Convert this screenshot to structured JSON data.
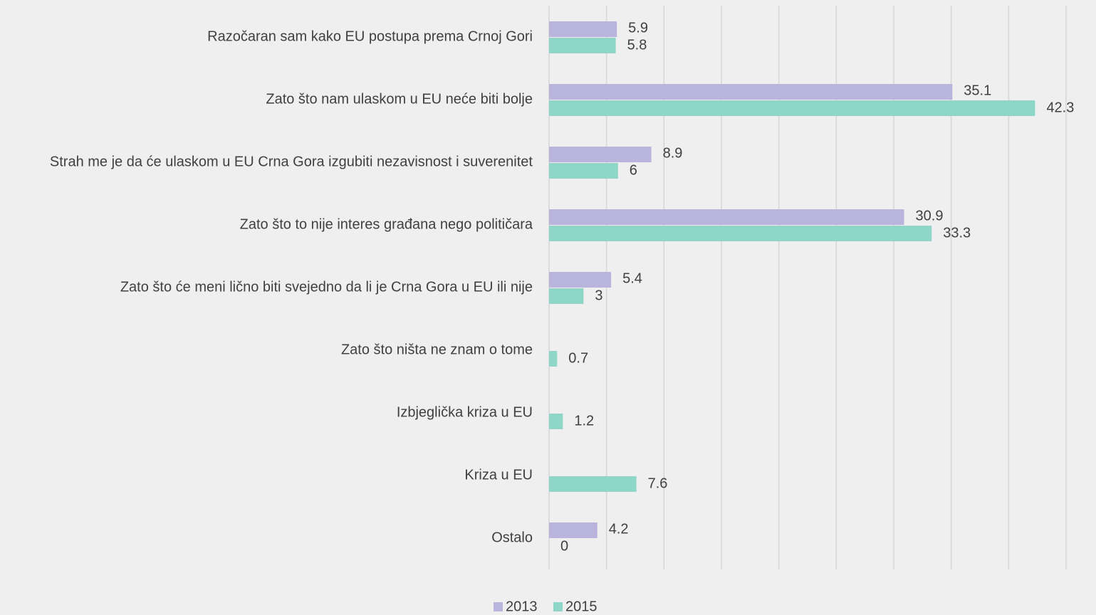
{
  "chart_data": {
    "type": "barh",
    "categories": [
      "Razočaran sam kako EU postupa prema Crnoj Gori",
      "Zato što nam ulaskom u EU neće biti bolje",
      "Strah me je da će ulaskom u EU Crna Gora izgubiti nezavisnost i suverenitet",
      "Zato što to nije interes građana nego političara",
      "Zato što će meni lično biti svejedno da li je Crna Gora u EU ili nije",
      "Zato što ništa ne znam o tome",
      "Izbjeglička kriza u EU",
      "Kriza u EU",
      "Ostalo"
    ],
    "series": [
      {
        "name": "2013",
        "color": "#b9b4dc",
        "values": [
          5.9,
          35.1,
          8.9,
          30.9,
          5.4,
          null,
          null,
          null,
          4.2
        ]
      },
      {
        "name": "2015",
        "color": "#8ed6c8",
        "values": [
          5.8,
          42.3,
          6,
          33.3,
          3,
          0.7,
          1.2,
          7.6,
          0
        ]
      }
    ],
    "xlim": [
      0,
      45
    ],
    "xticks": [
      0,
      5,
      10,
      15,
      20,
      25,
      30,
      35,
      40,
      45
    ],
    "grid": true,
    "legend": "bottom"
  }
}
